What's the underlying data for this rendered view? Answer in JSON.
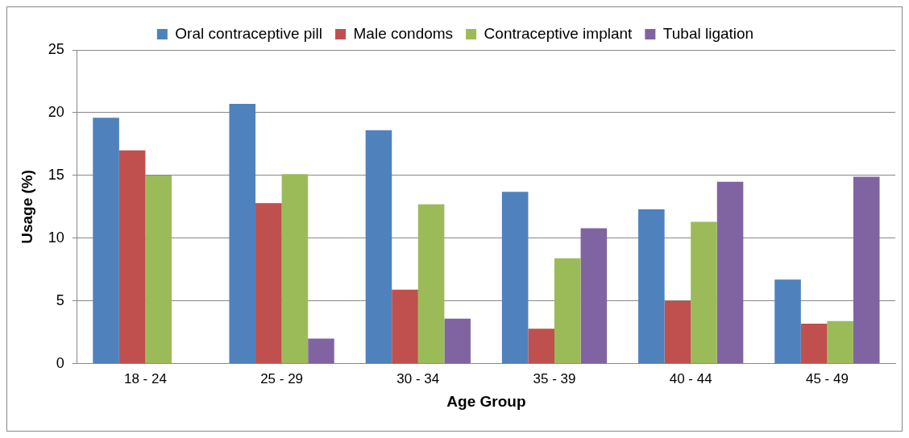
{
  "chart_data": {
    "type": "bar",
    "xlabel": "Age Group",
    "ylabel": "Usage (%)",
    "categories": [
      "18 - 24",
      "25 - 29",
      "30 - 34",
      "35 - 39",
      "40 - 44",
      "45 - 49"
    ],
    "series": [
      {
        "name": "Oral contraceptive pill",
        "color": "#4f81bd",
        "values": [
          19.6,
          20.7,
          18.6,
          13.7,
          12.3,
          6.7
        ]
      },
      {
        "name": "Male condoms",
        "color": "#c0504d",
        "values": [
          17.0,
          12.8,
          5.9,
          2.8,
          5.0,
          3.2
        ]
      },
      {
        "name": "Contraceptive implant",
        "color": "#9bbb59",
        "values": [
          15.0,
          15.1,
          12.7,
          8.4,
          11.3,
          3.4
        ]
      },
      {
        "name": "Tubal ligation",
        "color": "#8064a2",
        "values": [
          0,
          2.0,
          3.6,
          10.8,
          14.5,
          14.9
        ]
      }
    ],
    "ylim": [
      0,
      25
    ],
    "yticks": [
      0,
      5,
      10,
      15,
      20,
      25
    ],
    "grid": "y",
    "legend": "top"
  }
}
